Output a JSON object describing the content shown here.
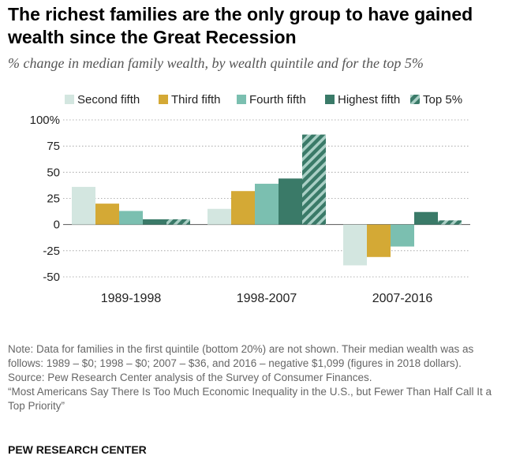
{
  "title": "The richest families are the only group to have gained wealth since the Great Recession",
  "subtitle": "% change in median family wealth, by wealth quintile and for the top 5%",
  "chart_data": {
    "type": "bar",
    "categories": [
      "1989-1998",
      "1998-2007",
      "2007-2016"
    ],
    "series": [
      {
        "name": "Second fifth",
        "values": [
          36,
          15,
          -39
        ],
        "color": "#d3e6e0",
        "pattern": "solid"
      },
      {
        "name": "Third fifth",
        "values": [
          20,
          32,
          -31
        ],
        "color": "#d4a935",
        "pattern": "solid"
      },
      {
        "name": "Fourth fifth",
        "values": [
          13,
          39,
          -21
        ],
        "color": "#7bbfb0",
        "pattern": "solid"
      },
      {
        "name": "Highest fifth",
        "values": [
          5,
          44,
          12
        ],
        "color": "#3a7a68",
        "pattern": "solid"
      },
      {
        "name": "Top 5%",
        "values": [
          5,
          86,
          4
        ],
        "color": "#3a7a68",
        "pattern": "striped"
      }
    ],
    "ylim": [
      -50,
      100
    ],
    "yticks": [
      100,
      75,
      50,
      25,
      0,
      -25,
      -50
    ],
    "ytick_labels": [
      "100%",
      "75",
      "50",
      "25",
      "0",
      "-25",
      "-50"
    ],
    "grid": "dotted",
    "legend": "top"
  },
  "note": "Note: Data for families in the first quintile (bottom 20%) are not shown. Their median wealth was as follows: 1989 – $0; 1998 – $0; 2007 – $36, and 2016 – negative $1,099 (figures in 2018 dollars).",
  "source": "Source: Pew Research Center analysis of the Survey of Consumer Finances.",
  "report": "“Most Americans Say There Is Too Much Economic Inequality in the U.S., but Fewer Than Half Call It a Top Priority”",
  "footer": "PEW RESEARCH CENTER"
}
